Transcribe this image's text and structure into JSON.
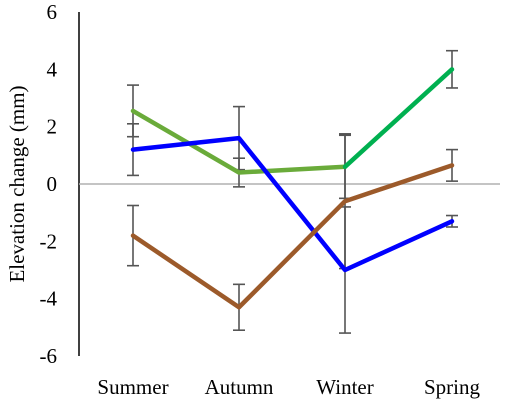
{
  "chart_data": {
    "type": "line",
    "title": "",
    "xlabel": "",
    "ylabel": "Elevation change (mm)",
    "ylim": [
      -6,
      6
    ],
    "yticks": [
      -6,
      -4,
      -2,
      0,
      2,
      4,
      6
    ],
    "categories": [
      "Summer",
      "Autumn",
      "Winter",
      "Spring"
    ],
    "grid": false,
    "legend": "none",
    "series": [
      {
        "color": "#6aab3a",
        "values": [
          2.55,
          0.4,
          0.6,
          null
        ],
        "error": [
          0.9,
          0.5,
          1.1,
          null
        ]
      },
      {
        "color": "#00b050",
        "values": [
          null,
          null,
          0.6,
          4.0
        ],
        "error": [
          null,
          null,
          null,
          0.65
        ]
      },
      {
        "color": "#0000ff",
        "values": [
          1.2,
          1.6,
          -3.0,
          -1.3
        ],
        "error": [
          0.9,
          1.1,
          2.2,
          0.2
        ]
      },
      {
        "color": "#9c5a2a",
        "values": [
          -1.8,
          -4.3,
          -0.6,
          0.65
        ],
        "error": [
          1.05,
          0.8,
          2.35,
          0.55
        ]
      }
    ],
    "zero_line_color": "#b0b0b0",
    "error_bar_color": "#555555"
  }
}
